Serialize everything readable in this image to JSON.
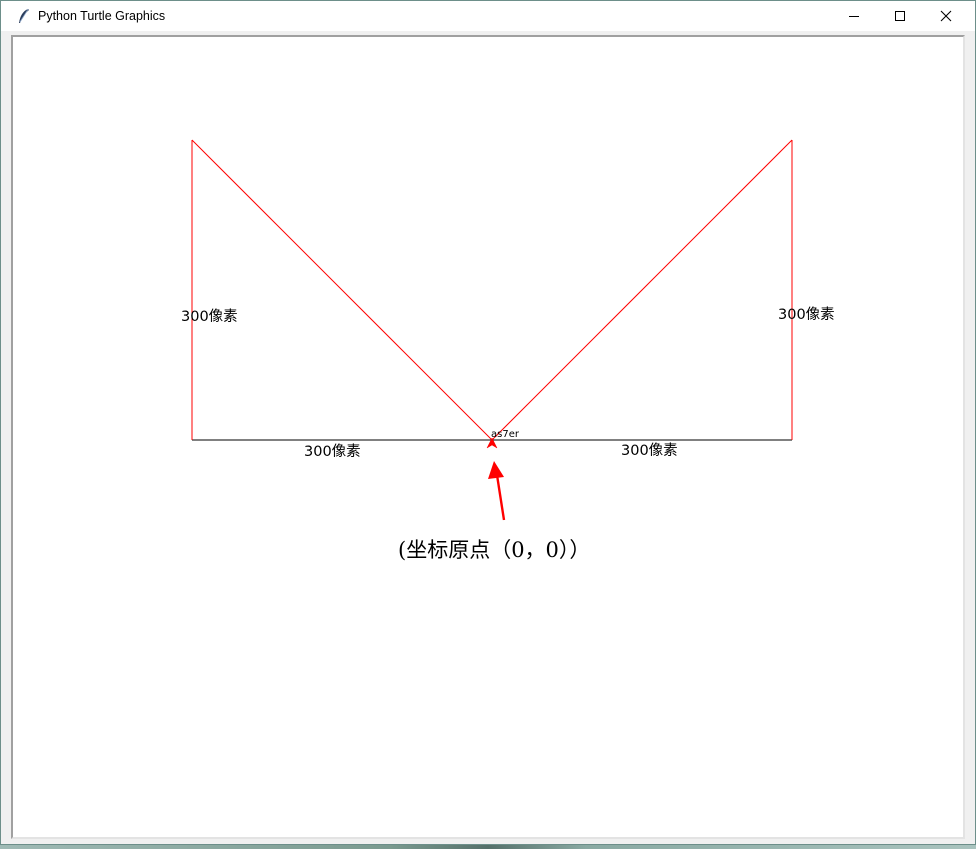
{
  "window": {
    "title": "Python Turtle Graphics",
    "controls": {
      "minimize": "minimize-icon",
      "maximize": "maximize-icon",
      "close": "close-icon"
    }
  },
  "canvas": {
    "background": "#ffffff",
    "line_color": "#ff0000",
    "axis_line_color": "#000000",
    "labels": {
      "left_vertical": "300像素",
      "right_vertical": "300像素",
      "bottom_left": "300像素",
      "bottom_right": "300像素",
      "turtle_name": "as7er",
      "origin_note": "(坐标原点（0，0））"
    },
    "turtle_icon": "turtle-arrow-icon",
    "annotation_arrow_color": "#ff0000"
  }
}
